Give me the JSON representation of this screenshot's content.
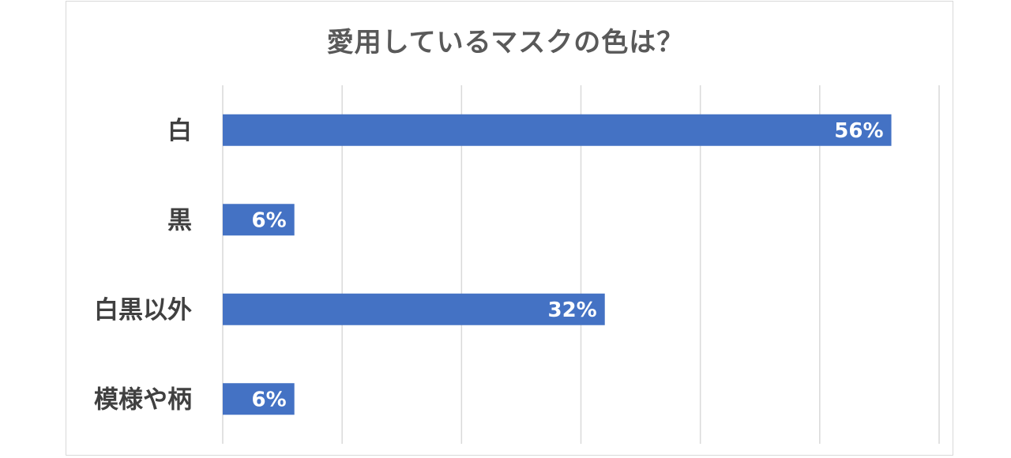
{
  "chart_data": {
    "type": "bar",
    "orientation": "horizontal",
    "title": "愛用しているマスクの色は？",
    "categories": [
      "白",
      "黒",
      "白黒以外",
      "模様や柄"
    ],
    "values": [
      56,
      6,
      32,
      6
    ],
    "data_labels": [
      "56%",
      "6%",
      "32%",
      "6%"
    ],
    "xlim": [
      0,
      60
    ],
    "grid": true,
    "bar_color": "#4472c4",
    "grid_color": "#d9d9d9",
    "legend": "none"
  }
}
